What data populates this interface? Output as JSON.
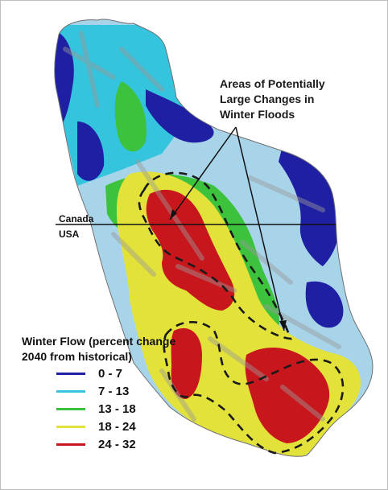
{
  "map": {
    "annotation": "Areas of Potentially Large Changes in Winter Floods",
    "border": {
      "north_label": "Canada",
      "south_label": "USA"
    },
    "legend": {
      "title": "Winter Flow (percent change 2040 from historical)",
      "classes": [
        {
          "label": "0 - 7",
          "color": "#1f1fa3"
        },
        {
          "label": "7 - 13",
          "color": "#35c4dd"
        },
        {
          "label": "13 - 18",
          "color": "#3cc23c"
        },
        {
          "label": "18 - 24",
          "color": "#e3e23a"
        },
        {
          "label": "24 - 32",
          "color": "#c8161d"
        }
      ]
    },
    "colors": {
      "river_network": "#9a9a9a",
      "outline": "#1a1a1a",
      "pale_blue": "#a8d4ea"
    }
  }
}
